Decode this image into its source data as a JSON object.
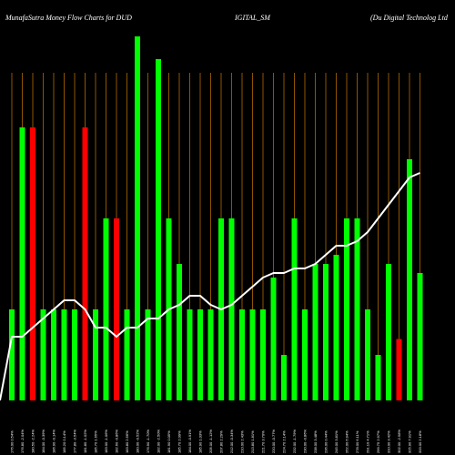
{
  "chart_data": {
    "type": "bar",
    "title_left": "MunafaSutra  Money Flow  Charts for DUD",
    "title_mid": "IGITAL_SM",
    "title_right": "(Du   Digital Technolog Ltd",
    "categories": [
      "176.00 0.54%",
      "176.80 -2.04%",
      "180.50 -2.24%",
      "184.00 -0.39%",
      "186.90 -0.14%",
      "185.20 0.14%",
      "177.80 -3.54%",
      "181.80 -1.02%",
      "185.70 1.65%",
      "183.00 -1.06%",
      "182.60 -0.86%",
      "183.80 2.56%",
      "180.00 -0.52%",
      "176.90 -1.70%",
      "182.00 -2.50%",
      "181.90 0.05%",
      "185.70 2.09%",
      "184.00 -0.91%",
      "185.90 1.03%",
      "205.00 -1.12%",
      "207.80 2.29%",
      "212.00 -0.34%",
      "210.00 2.43%",
      "213.80 1.81%",
      "221.70 3.70%",
      "220.00 -0.77%",
      "224.70 2.14%",
      "232.00 -1.79%",
      "230.00 -0.86%",
      "238.00 3.48%",
      "236.00 0.44%",
      "245.00 3.81%",
      "262.00 6.94%",
      "278.00 6.11%",
      "291.10 4.71%",
      "299.75 2.97%",
      "310.00 3.42%",
      "302.00 -2.58%",
      "325.90 7.91%",
      "333.00 2.18%"
    ],
    "values": [
      2,
      6,
      6,
      2,
      2,
      2,
      2,
      6,
      2,
      4,
      4,
      2,
      8,
      2,
      7.5,
      4,
      3,
      2,
      2,
      2,
      4,
      4,
      2,
      2,
      2,
      2.7,
      1,
      4,
      2,
      3,
      3,
      3.2,
      4,
      4,
      2,
      1,
      3,
      1.35,
      5.3,
      2.8
    ],
    "bar_colors": [
      "green",
      "green",
      "red",
      "green",
      "green",
      "green",
      "green",
      "red",
      "green",
      "green",
      "red",
      "green",
      "green",
      "green",
      "green",
      "green",
      "green",
      "green",
      "green",
      "green",
      "green",
      "green",
      "green",
      "green",
      "green",
      "green",
      "green",
      "green",
      "green",
      "green",
      "green",
      "green",
      "green",
      "green",
      "green",
      "green",
      "green",
      "red",
      "green",
      "green"
    ],
    "line_values": [
      1.4,
      1.4,
      1.6,
      1.8,
      2.0,
      2.2,
      2.2,
      2.0,
      1.6,
      1.6,
      1.4,
      1.6,
      1.6,
      1.8,
      1.8,
      2.0,
      2.1,
      2.3,
      2.3,
      2.1,
      2.0,
      2.1,
      2.3,
      2.5,
      2.7,
      2.8,
      2.8,
      2.9,
      2.9,
      3.0,
      3.2,
      3.4,
      3.4,
      3.5,
      3.7,
      4.0,
      4.3,
      4.6,
      4.9,
      5.0
    ],
    "ylim": [
      0,
      8
    ],
    "colors": {
      "background": "#000000",
      "green": "#00ff00",
      "red": "#ff0000",
      "line": "#ffffff",
      "grid": "#b36a00",
      "text": "#ffffff"
    }
  }
}
